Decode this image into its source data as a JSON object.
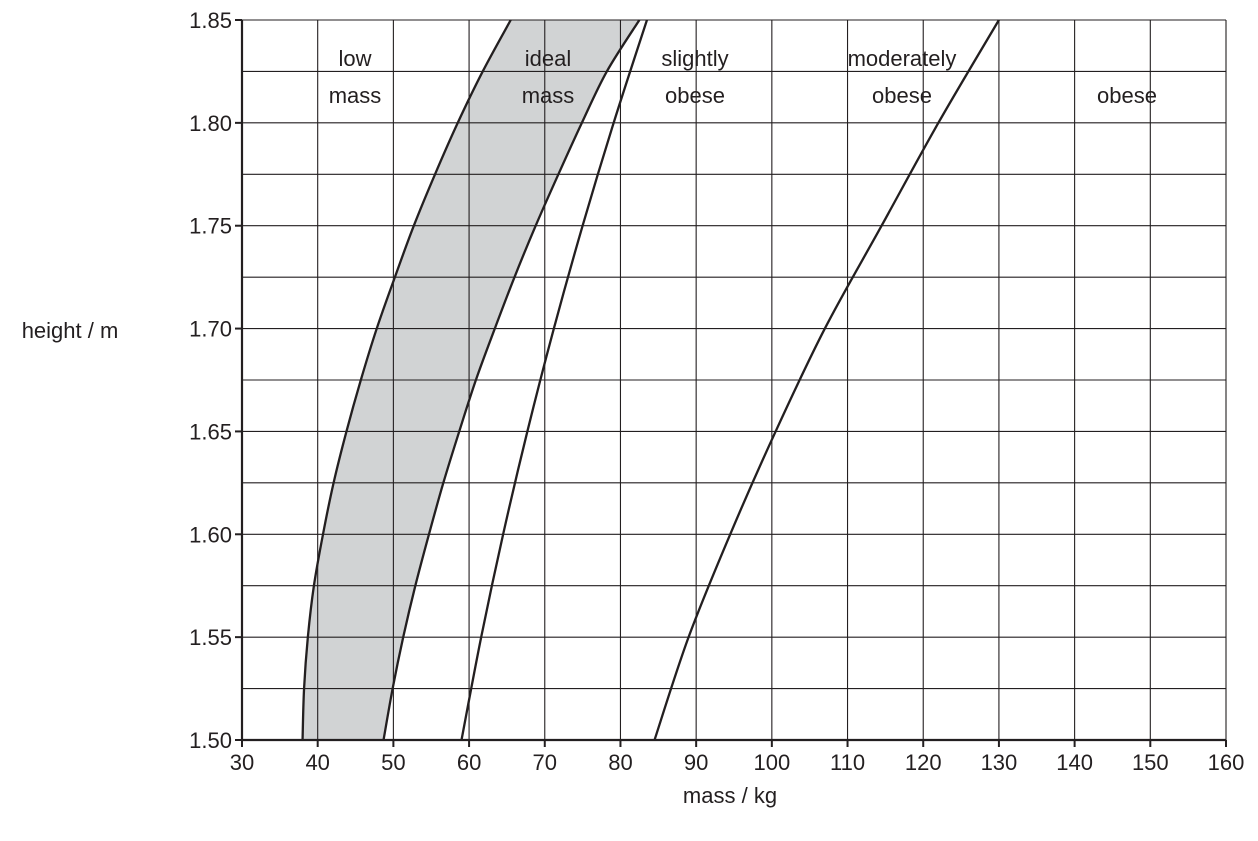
{
  "chart_data": {
    "type": "line",
    "xlabel": "mass / kg",
    "ylabel": "height / m",
    "xlim": [
      30,
      160
    ],
    "ylim": [
      1.5,
      1.85
    ],
    "x_ticks": [
      "30",
      "40",
      "50",
      "60",
      "70",
      "80",
      "90",
      "100",
      "110",
      "120",
      "130",
      "140",
      "150",
      "160"
    ],
    "y_ticks": [
      "1.50",
      "1.55",
      "1.60",
      "1.65",
      "1.70",
      "1.75",
      "1.80",
      "1.85"
    ],
    "grid": true,
    "grid_x_step": 10,
    "grid_y_step": 0.025,
    "shaded_region": {
      "between": [
        "boundary-1",
        "boundary-2"
      ],
      "label": "ideal mass",
      "color": "#d1d3d4"
    },
    "series": [
      {
        "id": "boundary-1",
        "points": [
          [
            38,
            1.5
          ],
          [
            38.2,
            1.525
          ],
          [
            38.7,
            1.55
          ],
          [
            39.5,
            1.575
          ],
          [
            40.7,
            1.6
          ],
          [
            42.1,
            1.625
          ],
          [
            43.8,
            1.65
          ],
          [
            45.7,
            1.675
          ],
          [
            47.8,
            1.7
          ],
          [
            50.2,
            1.725
          ],
          [
            52.7,
            1.75
          ],
          [
            55.5,
            1.775
          ],
          [
            58.5,
            1.8
          ],
          [
            61.8,
            1.825
          ],
          [
            65.5,
            1.85
          ]
        ]
      },
      {
        "id": "boundary-2",
        "points": [
          [
            48.7,
            1.5
          ],
          [
            49.9,
            1.525
          ],
          [
            51.3,
            1.55
          ],
          [
            52.9,
            1.575
          ],
          [
            54.7,
            1.6
          ],
          [
            56.6,
            1.625
          ],
          [
            58.7,
            1.65
          ],
          [
            60.9,
            1.675
          ],
          [
            63.4,
            1.7
          ],
          [
            66.0,
            1.725
          ],
          [
            68.8,
            1.75
          ],
          [
            71.8,
            1.775
          ],
          [
            74.9,
            1.8
          ],
          [
            78.2,
            1.825
          ],
          [
            82.5,
            1.85
          ]
        ]
      },
      {
        "id": "boundary-3",
        "points": [
          [
            59,
            1.5
          ],
          [
            61.6,
            1.55
          ],
          [
            64.5,
            1.6
          ],
          [
            67.7,
            1.65
          ],
          [
            71.2,
            1.7
          ],
          [
            75.0,
            1.75
          ],
          [
            79.1,
            1.8
          ],
          [
            83.5,
            1.85
          ]
        ]
      },
      {
        "id": "boundary-4",
        "points": [
          [
            84.5,
            1.5
          ],
          [
            89.0,
            1.55
          ],
          [
            94.5,
            1.6
          ],
          [
            100.5,
            1.65
          ],
          [
            107.0,
            1.7
          ],
          [
            114.5,
            1.75
          ],
          [
            122.0,
            1.8
          ],
          [
            130.0,
            1.85
          ]
        ]
      }
    ],
    "regions": [
      {
        "id": "low-mass",
        "lines": [
          "low",
          "mass"
        ]
      },
      {
        "id": "ideal-mass",
        "lines": [
          "ideal",
          "mass"
        ]
      },
      {
        "id": "slightly-obese",
        "lines": [
          "slightly",
          "obese"
        ]
      },
      {
        "id": "moderately-obese",
        "lines": [
          "moderately",
          "obese"
        ]
      },
      {
        "id": "obese",
        "lines": [
          "obese"
        ]
      }
    ]
  }
}
